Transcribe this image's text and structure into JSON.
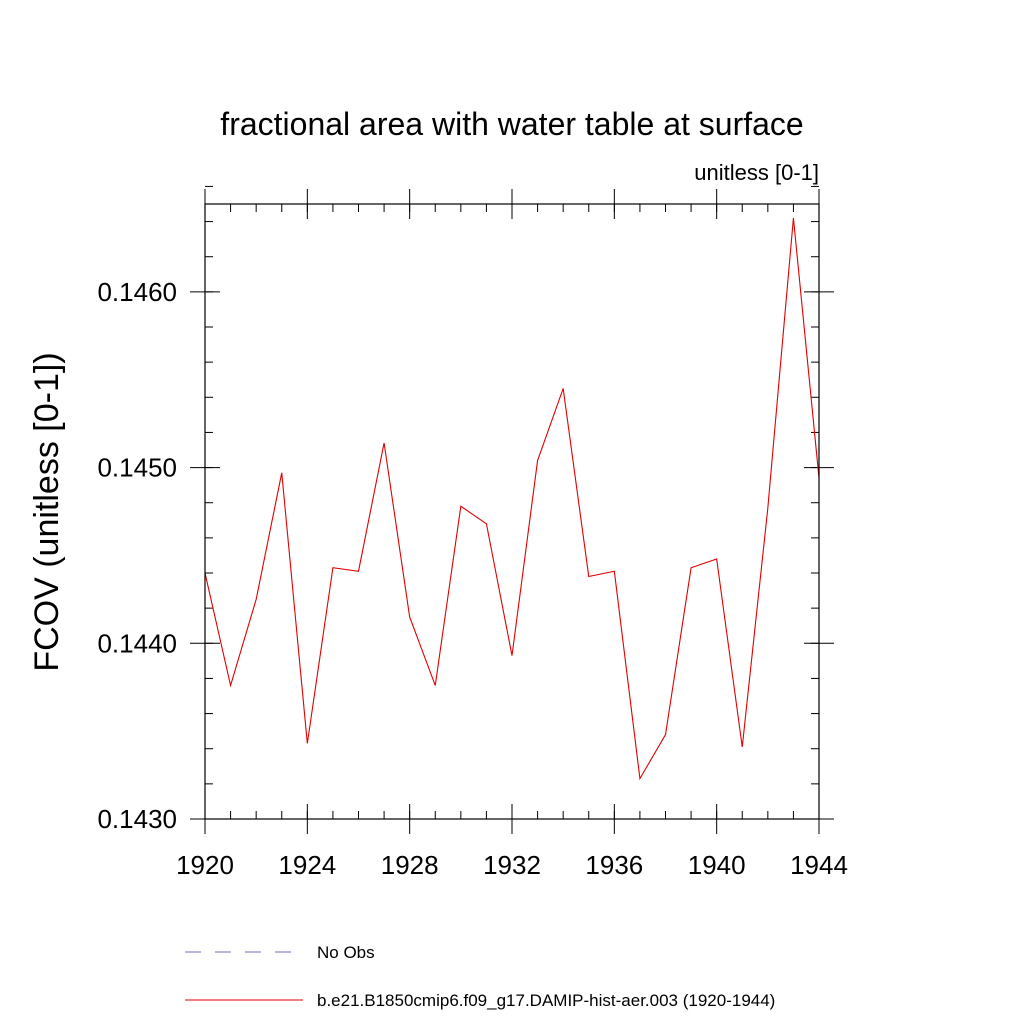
{
  "chart_data": {
    "type": "line",
    "title": "fractional area with water table at surface",
    "subtitle": "unitless [0-1]",
    "xlabel": "",
    "ylabel": "FCOV  (unitless [0-1])",
    "xlim": [
      1920,
      1944
    ],
    "ylim": [
      0.143,
      0.1465
    ],
    "x_ticks": [
      1920,
      1924,
      1928,
      1932,
      1936,
      1940,
      1944
    ],
    "x_tick_labels": [
      "1920",
      "1924",
      "1928",
      "1932",
      "1936",
      "1940",
      "1944"
    ],
    "y_ticks": [
      0.143,
      0.144,
      0.145,
      0.146
    ],
    "y_tick_labels": [
      "0.1430",
      "0.1440",
      "0.1450",
      "0.1460"
    ],
    "x_minor_step": 1,
    "y_minor_step": 0.0002,
    "grid": false,
    "legend_position": "bottom-left",
    "series": [
      {
        "name": "No Obs",
        "color": "#6f6fb0",
        "dash": "dashed",
        "x": [],
        "values": []
      },
      {
        "name": "b.e21.B1850cmip6.f09_g17.DAMIP-hist-aer.003 (1920-1944)",
        "color": "#e00000",
        "dash": "solid",
        "x": [
          1920,
          1921,
          1922,
          1923,
          1924,
          1925,
          1926,
          1927,
          1928,
          1929,
          1930,
          1931,
          1932,
          1933,
          1934,
          1935,
          1936,
          1937,
          1938,
          1939,
          1940,
          1941,
          1942,
          1943,
          1944
        ],
        "values": [
          0.1444,
          0.14376,
          0.14425,
          0.14497,
          0.14343,
          0.14443,
          0.14441,
          0.14514,
          0.14415,
          0.14376,
          0.14478,
          0.14468,
          0.14393,
          0.14504,
          0.14545,
          0.14438,
          0.14441,
          0.14323,
          0.14348,
          0.14443,
          0.14448,
          0.14341,
          0.14477,
          0.14642,
          0.14494
        ]
      }
    ]
  }
}
